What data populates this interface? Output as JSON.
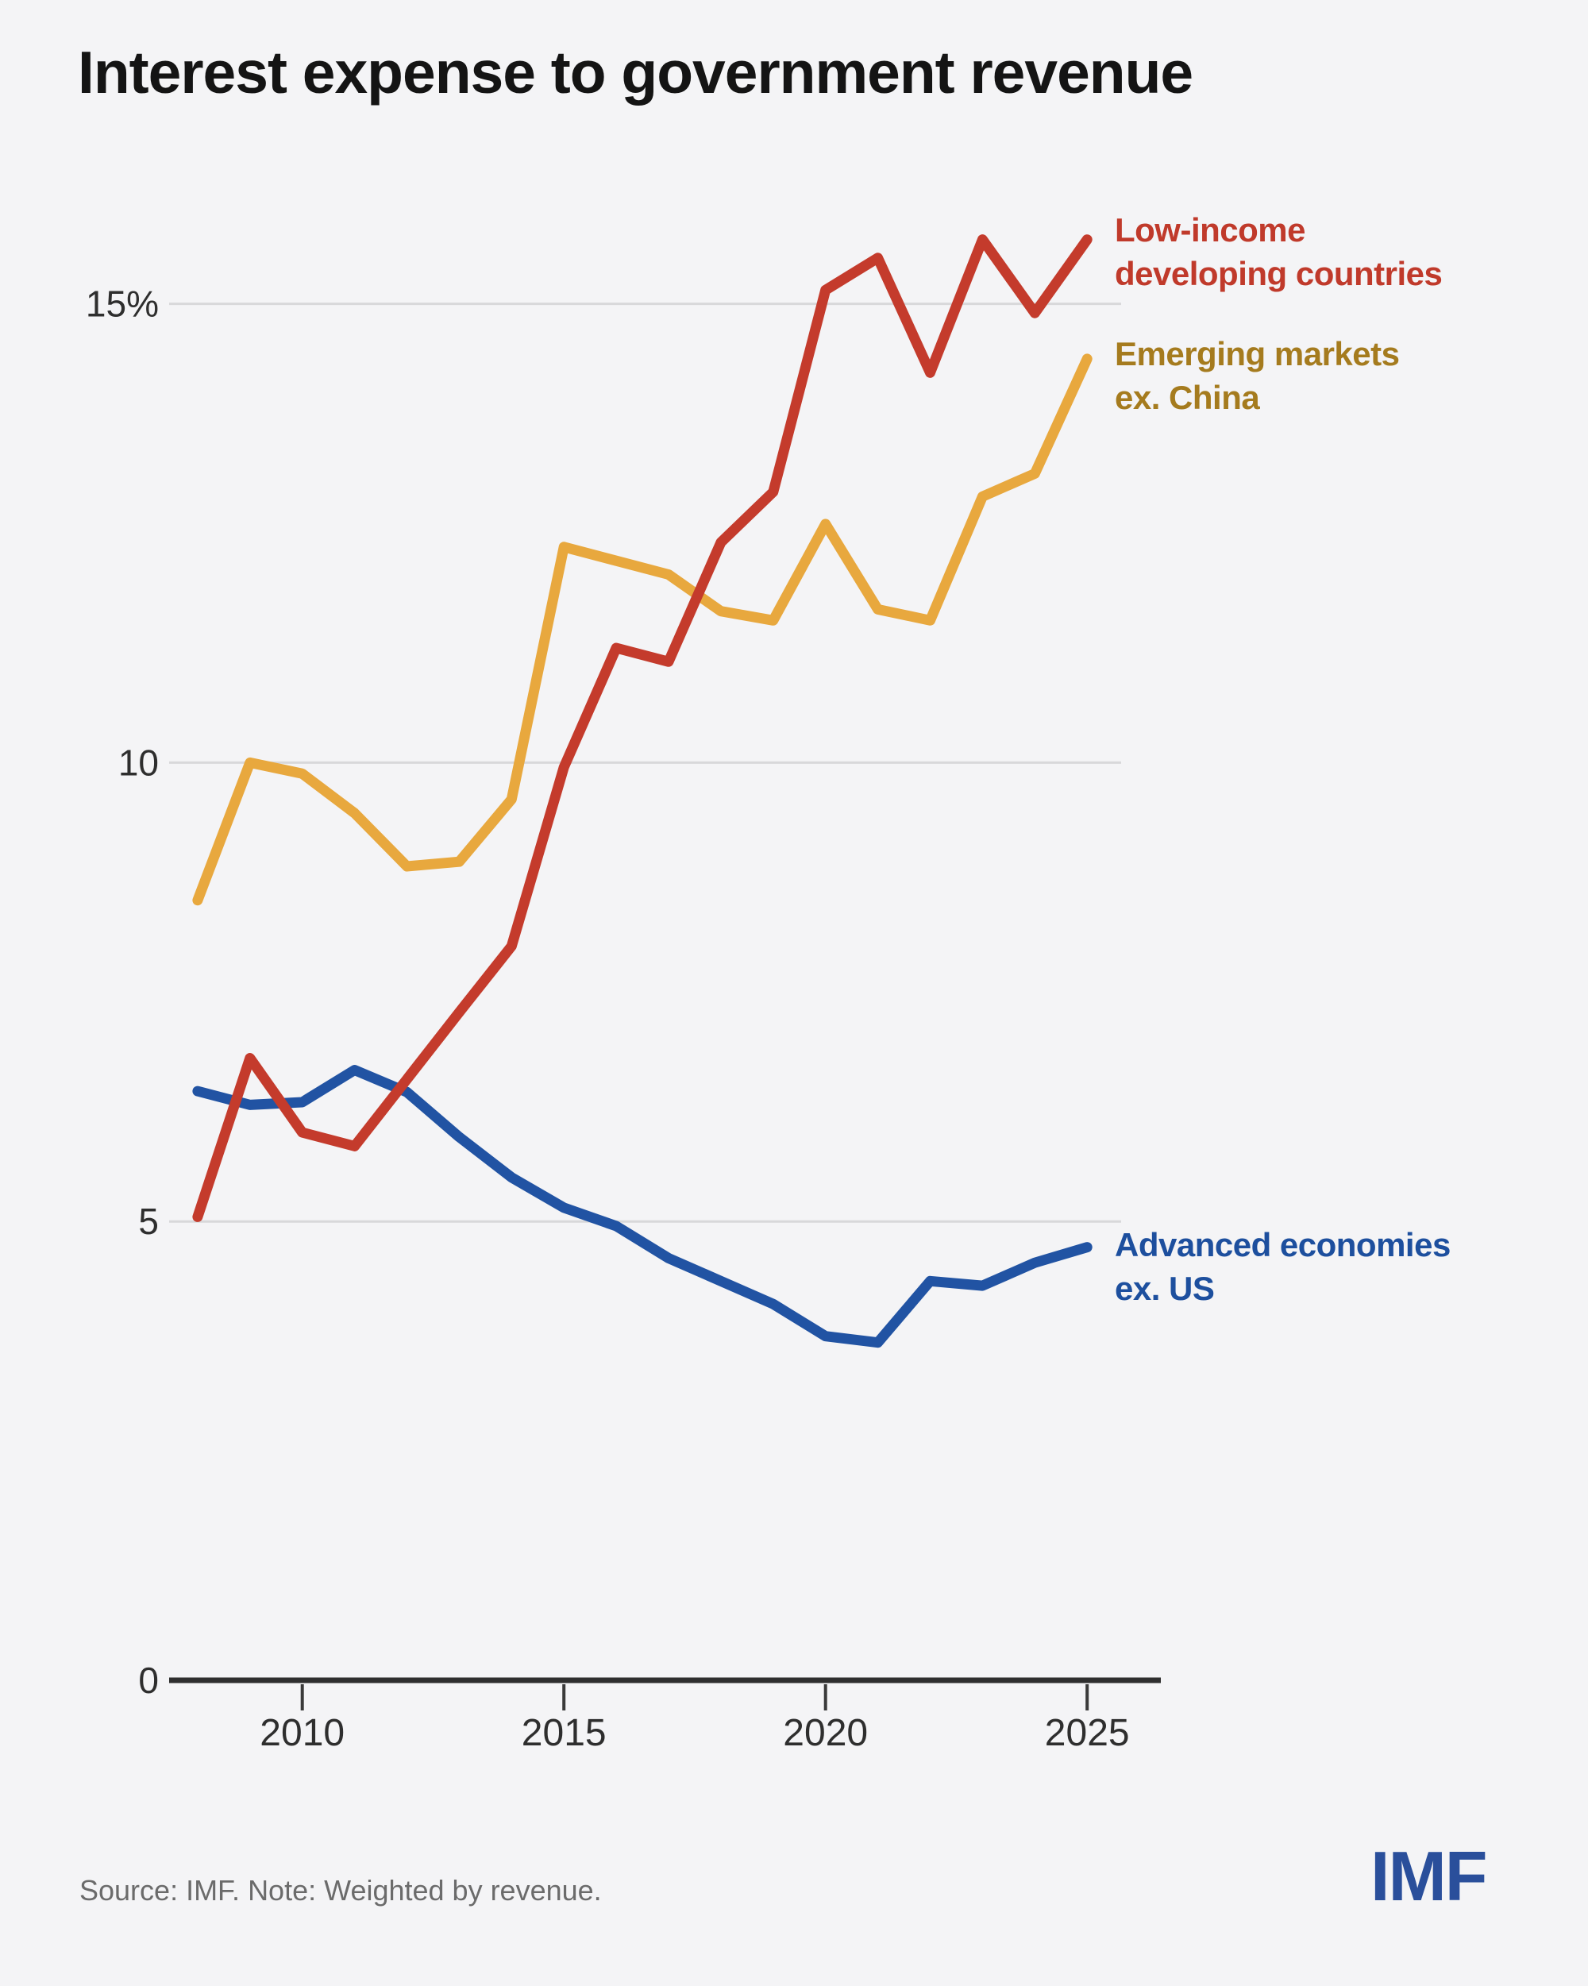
{
  "title": "Interest expense to government revenue",
  "footer": {
    "source_note": "Source: IMF. Note: Weighted by revenue."
  },
  "logo": {
    "text": "IMF",
    "color": "#2a4f9b"
  },
  "axes": {
    "y_ticks": [
      {
        "label": "15%",
        "value": 15
      },
      {
        "label": "10",
        "value": 10
      },
      {
        "label": "5",
        "value": 5
      },
      {
        "label": "0",
        "value": 0
      }
    ],
    "x_ticks": [
      {
        "label": "2010",
        "year": 2010
      },
      {
        "label": "2015",
        "year": 2015
      },
      {
        "label": "2020",
        "year": 2020
      },
      {
        "label": "2025",
        "year": 2025
      }
    ]
  },
  "chart_data": {
    "type": "line",
    "title": "Interest expense to government revenue",
    "unit": "%",
    "x": [
      2008,
      2009,
      2010,
      2011,
      2012,
      2013,
      2014,
      2015,
      2016,
      2017,
      2018,
      2019,
      2020,
      2021,
      2022,
      2023,
      2024,
      2025
    ],
    "xlim": [
      2007.5,
      2026.5
    ],
    "ylim": [
      0,
      16.5
    ],
    "grid": "horizontal",
    "legend_position": "labels beside lines",
    "series": [
      {
        "name": "Low-income developing countries",
        "label_line1": "Low-income",
        "label_line2": "developing countries",
        "color": "#c43b2c",
        "label_color": "#c03a2b",
        "values": [
          5.05,
          6.78,
          5.97,
          5.82,
          6.55,
          7.28,
          8.0,
          9.95,
          11.25,
          11.1,
          12.4,
          12.95,
          15.15,
          15.5,
          14.25,
          15.7,
          14.9,
          15.7
        ]
      },
      {
        "name": "Emerging markets ex. China",
        "label_line1": "Emerging markets",
        "label_line2": "ex. China",
        "color": "#e8a83e",
        "label_color": "#a57b1e",
        "values": [
          8.5,
          10.0,
          9.88,
          9.45,
          8.87,
          8.92,
          9.6,
          12.35,
          12.2,
          12.05,
          11.65,
          11.55,
          12.6,
          11.67,
          11.55,
          12.9,
          13.15,
          14.4
        ]
      },
      {
        "name": "Advanced economies ex. US",
        "label_line1": "Advanced economies",
        "label_line2": "ex. US",
        "color": "#2153a3",
        "label_color": "#1d4f9e",
        "values": [
          6.42,
          6.27,
          6.3,
          6.65,
          6.41,
          5.92,
          5.48,
          5.15,
          4.95,
          4.6,
          4.35,
          4.1,
          3.75,
          3.68,
          4.35,
          4.3,
          4.55,
          4.72
        ]
      }
    ]
  }
}
